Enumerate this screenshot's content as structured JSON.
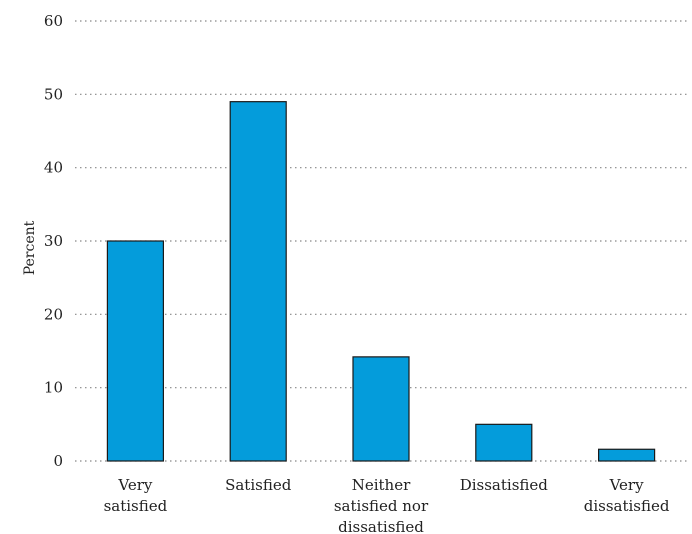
{
  "chart_data": {
    "type": "bar",
    "categories": [
      [
        "Very",
        "satisfied"
      ],
      [
        "Satisfied"
      ],
      [
        "Neither",
        "satisfied nor",
        "dissatisfied"
      ],
      [
        "Dissatisfied"
      ],
      [
        "Very",
        "dissatisfied"
      ]
    ],
    "values": [
      30,
      49,
      14.2,
      5,
      1.6
    ],
    "title": "",
    "xlabel": "",
    "ylabel": "Percent",
    "ylim": [
      0,
      60
    ],
    "yticks": [
      0,
      10,
      20,
      30,
      40,
      50,
      60
    ],
    "grid": "horizontal dotted",
    "bar_color": "#049cdb",
    "bar_edge_color": "#1a1a1a"
  }
}
